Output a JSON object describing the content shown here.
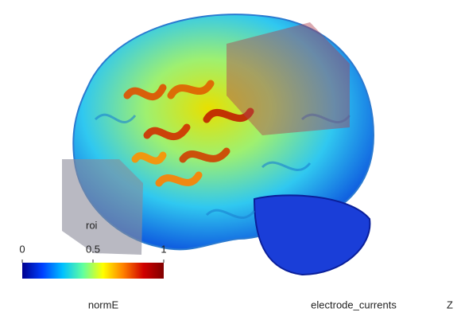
{
  "scene": {
    "roi_label": "roi"
  },
  "colorbar": {
    "label": "normE",
    "lim": [
      0,
      1
    ],
    "ticks": [
      0,
      0.5,
      1
    ],
    "colormap": [
      "#00008f",
      "#0040ff",
      "#00c0ff",
      "#60ffa0",
      "#ffff00",
      "#ff8000",
      "#d00000",
      "#800000"
    ]
  },
  "footer": {
    "middle": "electrode_currents",
    "right": "Z"
  }
}
